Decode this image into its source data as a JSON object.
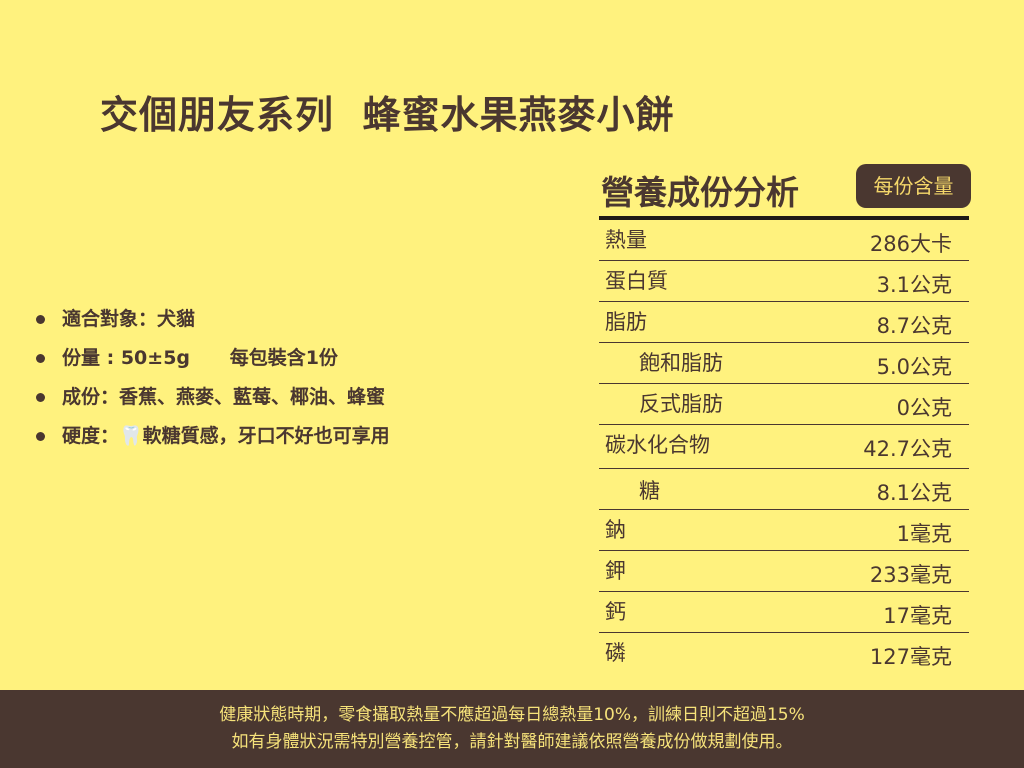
{
  "title": "交個朋友系列  蜂蜜水果燕麥小餅",
  "bullets": [
    "適合對象：犬貓",
    "份量 : 50±5g      每包裝含1份",
    "成份：香蕉、燕麥、藍莓、椰油、蜂蜜",
    "硬度：🦷軟糖質感，牙口不好也可享用"
  ],
  "nutrition": {
    "title": "營養成份分析",
    "badge": "每份含量",
    "rows": [
      {
        "label": "熱量",
        "value": "286大卡"
      },
      {
        "label": "蛋白質",
        "value": "3.1公克"
      },
      {
        "label": "脂肪",
        "value": "8.7公克"
      },
      {
        "label": "飽和脂肪",
        "value": "5.0公克"
      },
      {
        "label": "反式脂肪",
        "value": "0公克"
      },
      {
        "label": "碳水化合物",
        "value": "42.7公克"
      },
      {
        "label": "糖",
        "value": "8.1公克"
      },
      {
        "label": "鈉",
        "value": "1毫克"
      },
      {
        "label": "鉀",
        "value": "233毫克"
      },
      {
        "label": "鈣",
        "value": "17毫克"
      },
      {
        "label": "磷",
        "value": "127毫克"
      }
    ]
  },
  "footer": {
    "line1": "健康狀態時期，零食攝取熱量不應超過每日總熱量10%，訓練日則不超過15%",
    "line2": "如有身體狀況需特別營養控管，請針對醫師建議依照營養成份做規劃使用。"
  },
  "colors": {
    "background": "#FFF27E",
    "brown": "#4A3730",
    "footer_text": "#F6E27A"
  }
}
